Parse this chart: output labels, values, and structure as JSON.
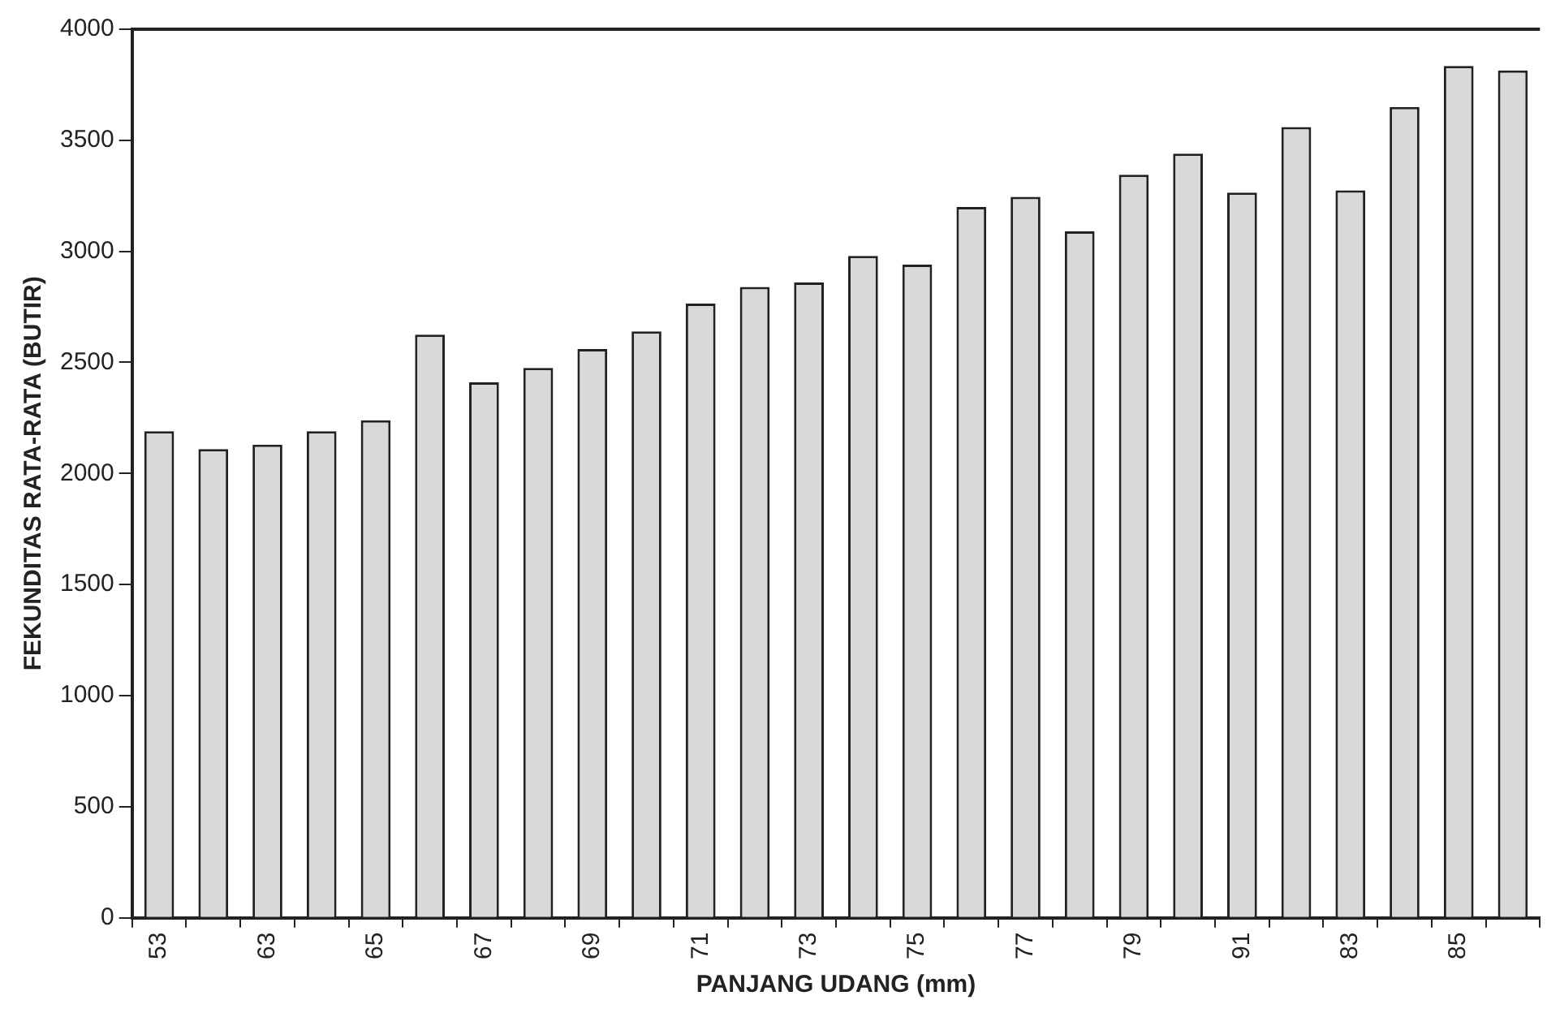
{
  "chart_data": {
    "type": "bar",
    "xlabel": "PANJANG UDANG (mm)",
    "ylabel": "FEKUNDITAS RATA-RATA (BUTIR)",
    "categories": [
      "53",
      null,
      "63",
      null,
      "65",
      null,
      "67",
      null,
      "69",
      null,
      "71",
      null,
      "73",
      null,
      "75",
      null,
      "77",
      null,
      "79",
      null,
      "91",
      null,
      "83",
      null,
      "85",
      null
    ],
    "values": [
      2190,
      2110,
      2130,
      2190,
      2240,
      2625,
      2410,
      2475,
      2560,
      2640,
      2765,
      2840,
      2860,
      2980,
      2940,
      3200,
      3245,
      3090,
      3345,
      3440,
      3265,
      3560,
      3275,
      3650,
      3835,
      3815
    ],
    "color": "#d9d9d9",
    "ylim": [
      0,
      4000
    ],
    "yticks": [
      0,
      500,
      1000,
      1500,
      2000,
      2500,
      3000,
      3500,
      4000
    ],
    "grid": false,
    "legend": false
  }
}
